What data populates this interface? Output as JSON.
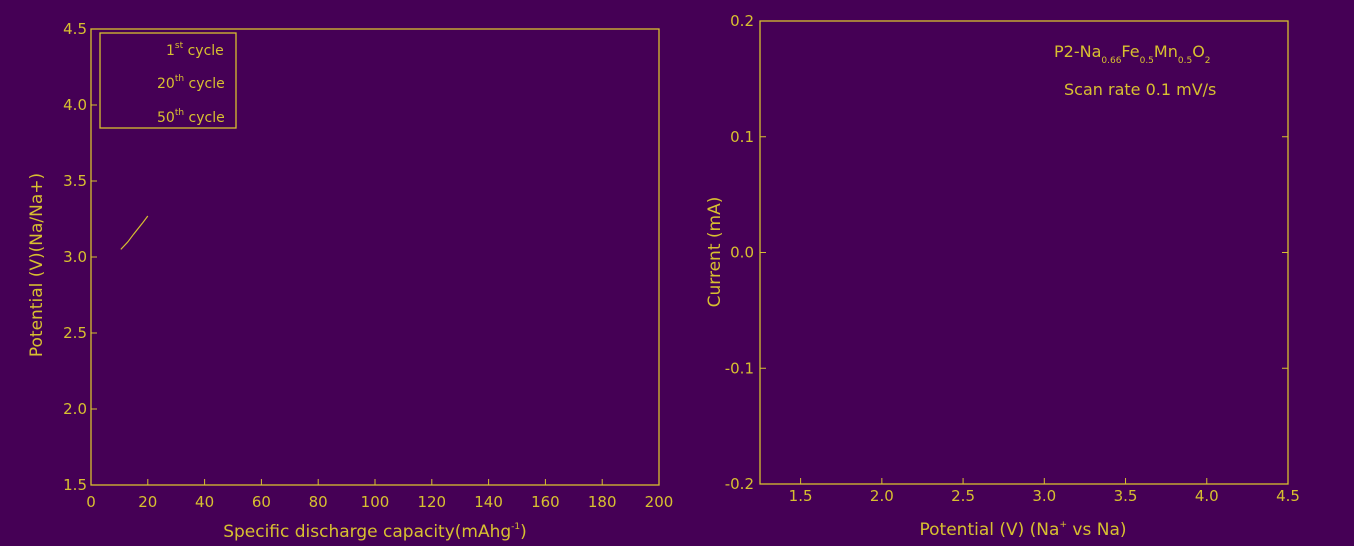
{
  "colors": {
    "background": "#450055",
    "foreground": "#d8c030"
  },
  "chart_data": [
    {
      "type": "line",
      "title": "",
      "xlabel": "Specific discharge capacity(mAhg",
      "xlabel_sup": "-1",
      "xlabel_end": ")",
      "ylabel": "Potential (V)(Na/Na+)",
      "xlim": [
        0,
        200
      ],
      "ylim": [
        1.5,
        4.5
      ],
      "xticks": [
        "0",
        "20",
        "40",
        "60",
        "80",
        "100",
        "120",
        "140",
        "160",
        "180",
        "200"
      ],
      "yticks": [
        "1.5",
        "2.0",
        "2.5",
        "3.0",
        "3.5",
        "4.0",
        "4.5"
      ],
      "legend_position": "top-left",
      "legend": [
        {
          "base": "1",
          "sup": "st",
          "after": " cycle"
        },
        {
          "base": "20",
          "sup": "th",
          "after": " cycle"
        },
        {
          "base": "50",
          "sup": "th",
          "after": " cycle"
        }
      ],
      "series": [
        {
          "name": "1st cycle",
          "x": [
            10.5,
            13.0,
            15.0,
            18.0,
            20.0
          ],
          "y": [
            3.05,
            3.1,
            3.15,
            3.22,
            3.27
          ]
        }
      ]
    },
    {
      "type": "line",
      "title": "",
      "xlabel": "Potential (V) (Na",
      "xlabel_sup": "+",
      "xlabel_end": " vs Na)",
      "ylabel": "Current (mA)",
      "xlim": [
        1.25,
        4.5
      ],
      "ylim": [
        -0.2,
        0.2
      ],
      "xticks": [
        "1.5",
        "2.0",
        "2.5",
        "3.0",
        "3.5",
        "4.0",
        "4.5"
      ],
      "xtick_values": [
        1.5,
        2.0,
        2.5,
        3.0,
        3.5,
        4.0,
        4.5
      ],
      "yticks": [
        "0.2",
        "0.1",
        "0.0",
        "-0.1",
        "-0.2"
      ],
      "ytick_values": [
        0.2,
        0.1,
        0.0,
        -0.1,
        -0.2
      ],
      "annotation": {
        "material_prefix": "P2-Na",
        "na_sub": "0.66",
        "fe": "Fe",
        "fe_sub": "0.5",
        "mn": "Mn",
        "mn_sub": "0.5",
        "o": "O",
        "o_sub": "2",
        "scan_rate": "Scan rate 0.1 mV/s"
      },
      "series": []
    }
  ]
}
